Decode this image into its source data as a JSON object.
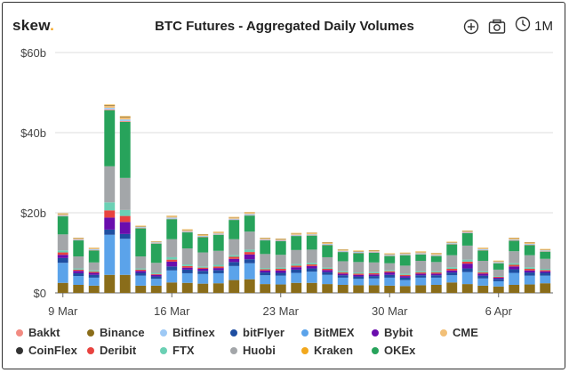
{
  "header": {
    "logo_text": "skew",
    "logo_dot": ".",
    "title": "BTC Futures - Aggregated Daily Volumes",
    "range_label": "1M"
  },
  "icons": [
    "plus-circle-icon",
    "camera-icon",
    "clock-icon"
  ],
  "chart_data": {
    "type": "bar",
    "stacked": true,
    "title": "BTC Futures - Aggregated Daily Volumes",
    "x_tick_labels": [
      "9 Mar",
      "16 Mar",
      "23 Mar",
      "30 Mar",
      "6 Apr"
    ],
    "y_tick_labels": [
      "$0",
      "$20b",
      "$40b",
      "$60b"
    ],
    "ylim": [
      0,
      60
    ],
    "ylabel": "",
    "xlabel": "",
    "grid": true,
    "legend_position": "bottom",
    "categories": [
      "2020-03-09",
      "2020-03-10",
      "2020-03-11",
      "2020-03-12",
      "2020-03-13",
      "2020-03-14",
      "2020-03-15",
      "2020-03-16",
      "2020-03-17",
      "2020-03-18",
      "2020-03-19",
      "2020-03-20",
      "2020-03-21",
      "2020-03-22",
      "2020-03-23",
      "2020-03-24",
      "2020-03-25",
      "2020-03-26",
      "2020-03-27",
      "2020-03-28",
      "2020-03-29",
      "2020-03-30",
      "2020-03-31",
      "2020-04-01",
      "2020-04-02",
      "2020-04-03",
      "2020-04-04",
      "2020-04-05",
      "2020-04-06",
      "2020-04-07",
      "2020-04-08",
      "2020-04-09"
    ],
    "series": [
      {
        "name": "Binance",
        "color": "#8a6d1a",
        "values": [
          2.5,
          2,
          1.8,
          4.5,
          4.5,
          1.8,
          1.8,
          2.6,
          2.5,
          2.3,
          2.4,
          3.2,
          3.4,
          2.2,
          2.1,
          2.5,
          2.5,
          2.2,
          2,
          1.9,
          1.9,
          1.8,
          1.7,
          1.9,
          2,
          2.6,
          2.2,
          1.8,
          1.6,
          2,
          2.1,
          2.4
        ]
      },
      {
        "name": "BitMEX",
        "color": "#5ba3ea",
        "values": [
          5,
          2.2,
          2,
          10,
          9,
          2.5,
          1.7,
          3,
          2.4,
          2.4,
          2.5,
          3.5,
          4,
          2.2,
          2.2,
          2.5,
          2.8,
          2.3,
          1.8,
          1.6,
          1.7,
          2,
          1.5,
          1.9,
          1.8,
          1.8,
          3,
          1.8,
          1.3,
          3,
          2.2,
          1.9
        ]
      },
      {
        "name": "bitFlyer",
        "color": "#1f4ea1",
        "values": [
          1.2,
          0.7,
          0.7,
          1.3,
          1.2,
          0.7,
          0.6,
          1,
          0.9,
          0.8,
          0.8,
          1,
          1,
          0.7,
          0.7,
          0.8,
          0.8,
          0.7,
          0.6,
          0.6,
          0.6,
          0.7,
          0.6,
          0.6,
          0.6,
          0.7,
          0.9,
          0.7,
          0.6,
          0.9,
          0.8,
          0.7
        ]
      },
      {
        "name": "Bybit",
        "color": "#6a0dad",
        "values": [
          0.8,
          0.6,
          0.5,
          3,
          3,
          0.5,
          0.4,
          1.2,
          0.5,
          0.5,
          0.5,
          0.8,
          1.2,
          0.5,
          0.6,
          0.6,
          0.6,
          0.5,
          0.4,
          0.4,
          0.4,
          0.6,
          0.4,
          0.4,
          0.4,
          0.5,
          1.2,
          0.5,
          0.3,
          0.7,
          0.5,
          0.4
        ]
      },
      {
        "name": "Deribit",
        "color": "#e8433f",
        "values": [
          0.6,
          0.3,
          0.3,
          1.8,
          1.5,
          0.3,
          0.2,
          0.5,
          0.4,
          0.3,
          0.4,
          0.5,
          0.6,
          0.3,
          0.4,
          0.4,
          0.4,
          0.3,
          0.3,
          0.3,
          0.3,
          0.3,
          0.3,
          0.3,
          0.3,
          0.4,
          0.5,
          0.3,
          0.2,
          0.4,
          0.4,
          0.3
        ]
      },
      {
        "name": "FTX",
        "color": "#6bd0b4",
        "values": [
          0.5,
          0.3,
          0.3,
          2,
          1.5,
          0.3,
          0.3,
          0.6,
          0.4,
          0.3,
          0.4,
          0.4,
          0.6,
          0.3,
          0.3,
          0.4,
          0.4,
          0.3,
          0.3,
          0.3,
          0.3,
          0.3,
          0.3,
          0.3,
          0.3,
          0.4,
          0.5,
          0.3,
          0.2,
          0.4,
          0.4,
          0.3
        ]
      },
      {
        "name": "Huobi",
        "color": "#a3a6a9",
        "values": [
          4,
          3,
          2,
          9,
          8,
          3,
          2.5,
          4.5,
          4,
          3.5,
          3.5,
          4,
          4.5,
          3.5,
          3.2,
          3.5,
          3.3,
          2.6,
          2.5,
          2.6,
          2.4,
          1.7,
          2,
          2.6,
          2.3,
          3,
          3.5,
          2.6,
          1.6,
          3,
          3,
          2.5
        ]
      },
      {
        "name": "OKEx",
        "color": "#27a35b",
        "values": [
          4.5,
          4,
          3,
          14,
          14,
          7,
          4.8,
          5,
          4,
          3.8,
          4,
          4.8,
          4,
          3.4,
          3.4,
          3.5,
          3.5,
          3,
          2.3,
          2.2,
          2.4,
          1.8,
          2.6,
          1.6,
          1.5,
          2.7,
          3.1,
          2.6,
          1.6,
          2.6,
          2.5,
          1.8
        ]
      },
      {
        "name": "Bakkt",
        "color": "#f28b82",
        "values": [
          0.1,
          0.1,
          0.1,
          0.2,
          0.2,
          0.1,
          0.1,
          0.1,
          0.1,
          0.1,
          0.1,
          0.1,
          0.1,
          0.1,
          0.1,
          0.1,
          0.1,
          0.1,
          0.1,
          0.1,
          0.1,
          0.1,
          0.1,
          0.1,
          0.1,
          0.1,
          0.1,
          0.1,
          0.1,
          0.1,
          0.1,
          0.1
        ]
      },
      {
        "name": "Bitfinex",
        "color": "#9ec9f5",
        "values": [
          0.2,
          0.2,
          0.2,
          0.4,
          0.4,
          0.2,
          0.2,
          0.3,
          0.2,
          0.2,
          0.2,
          0.2,
          0.3,
          0.2,
          0.2,
          0.2,
          0.2,
          0.2,
          0.2,
          0.2,
          0.2,
          0.2,
          0.2,
          0.2,
          0.2,
          0.2,
          0.2,
          0.2,
          0.2,
          0.2,
          0.2,
          0.2
        ]
      },
      {
        "name": "CME",
        "color": "#f2c078",
        "values": [
          0.3,
          0.2,
          0.2,
          0.5,
          0.5,
          0.2,
          0.1,
          0.3,
          0.3,
          0.3,
          0.3,
          0.3,
          0.3,
          0.2,
          0.2,
          0.3,
          0.3,
          0.3,
          0.2,
          0.2,
          0.2,
          0.2,
          0.2,
          0.3,
          0.3,
          0.2,
          0.2,
          0.2,
          0.2,
          0.3,
          0.3,
          0.2
        ]
      },
      {
        "name": "CoinFlex",
        "color": "#333333",
        "values": [
          0.05,
          0.05,
          0.05,
          0.1,
          0.1,
          0.05,
          0.05,
          0.05,
          0.05,
          0.05,
          0.05,
          0.05,
          0.05,
          0.05,
          0.05,
          0.05,
          0.05,
          0.05,
          0.05,
          0.05,
          0.05,
          0.05,
          0.05,
          0.05,
          0.05,
          0.05,
          0.05,
          0.05,
          0.05,
          0.05,
          0.05,
          0.05
        ]
      },
      {
        "name": "Kraken",
        "color": "#f2a81d",
        "values": [
          0.1,
          0.1,
          0.1,
          0.2,
          0.2,
          0.1,
          0.1,
          0.1,
          0.1,
          0.1,
          0.1,
          0.1,
          0.1,
          0.1,
          0.1,
          0.1,
          0.1,
          0.1,
          0.1,
          0.1,
          0.1,
          0.1,
          0.1,
          0.1,
          0.1,
          0.1,
          0.1,
          0.1,
          0.1,
          0.1,
          0.1,
          0.1
        ]
      }
    ],
    "legend": [
      {
        "name": "Bakkt",
        "color": "#f28b82"
      },
      {
        "name": "Binance",
        "color": "#8a6d1a"
      },
      {
        "name": "Bitfinex",
        "color": "#9ec9f5"
      },
      {
        "name": "bitFlyer",
        "color": "#1f4ea1"
      },
      {
        "name": "BitMEX",
        "color": "#5ba3ea"
      },
      {
        "name": "Bybit",
        "color": "#6a0dad"
      },
      {
        "name": "CME",
        "color": "#f2c078"
      },
      {
        "name": "CoinFlex",
        "color": "#333333"
      },
      {
        "name": "Deribit",
        "color": "#e8433f"
      },
      {
        "name": "FTX",
        "color": "#6bd0b4"
      },
      {
        "name": "Huobi",
        "color": "#a3a6a9"
      },
      {
        "name": "Kraken",
        "color": "#f2a81d"
      },
      {
        "name": "OKEx",
        "color": "#27a35b"
      }
    ]
  }
}
